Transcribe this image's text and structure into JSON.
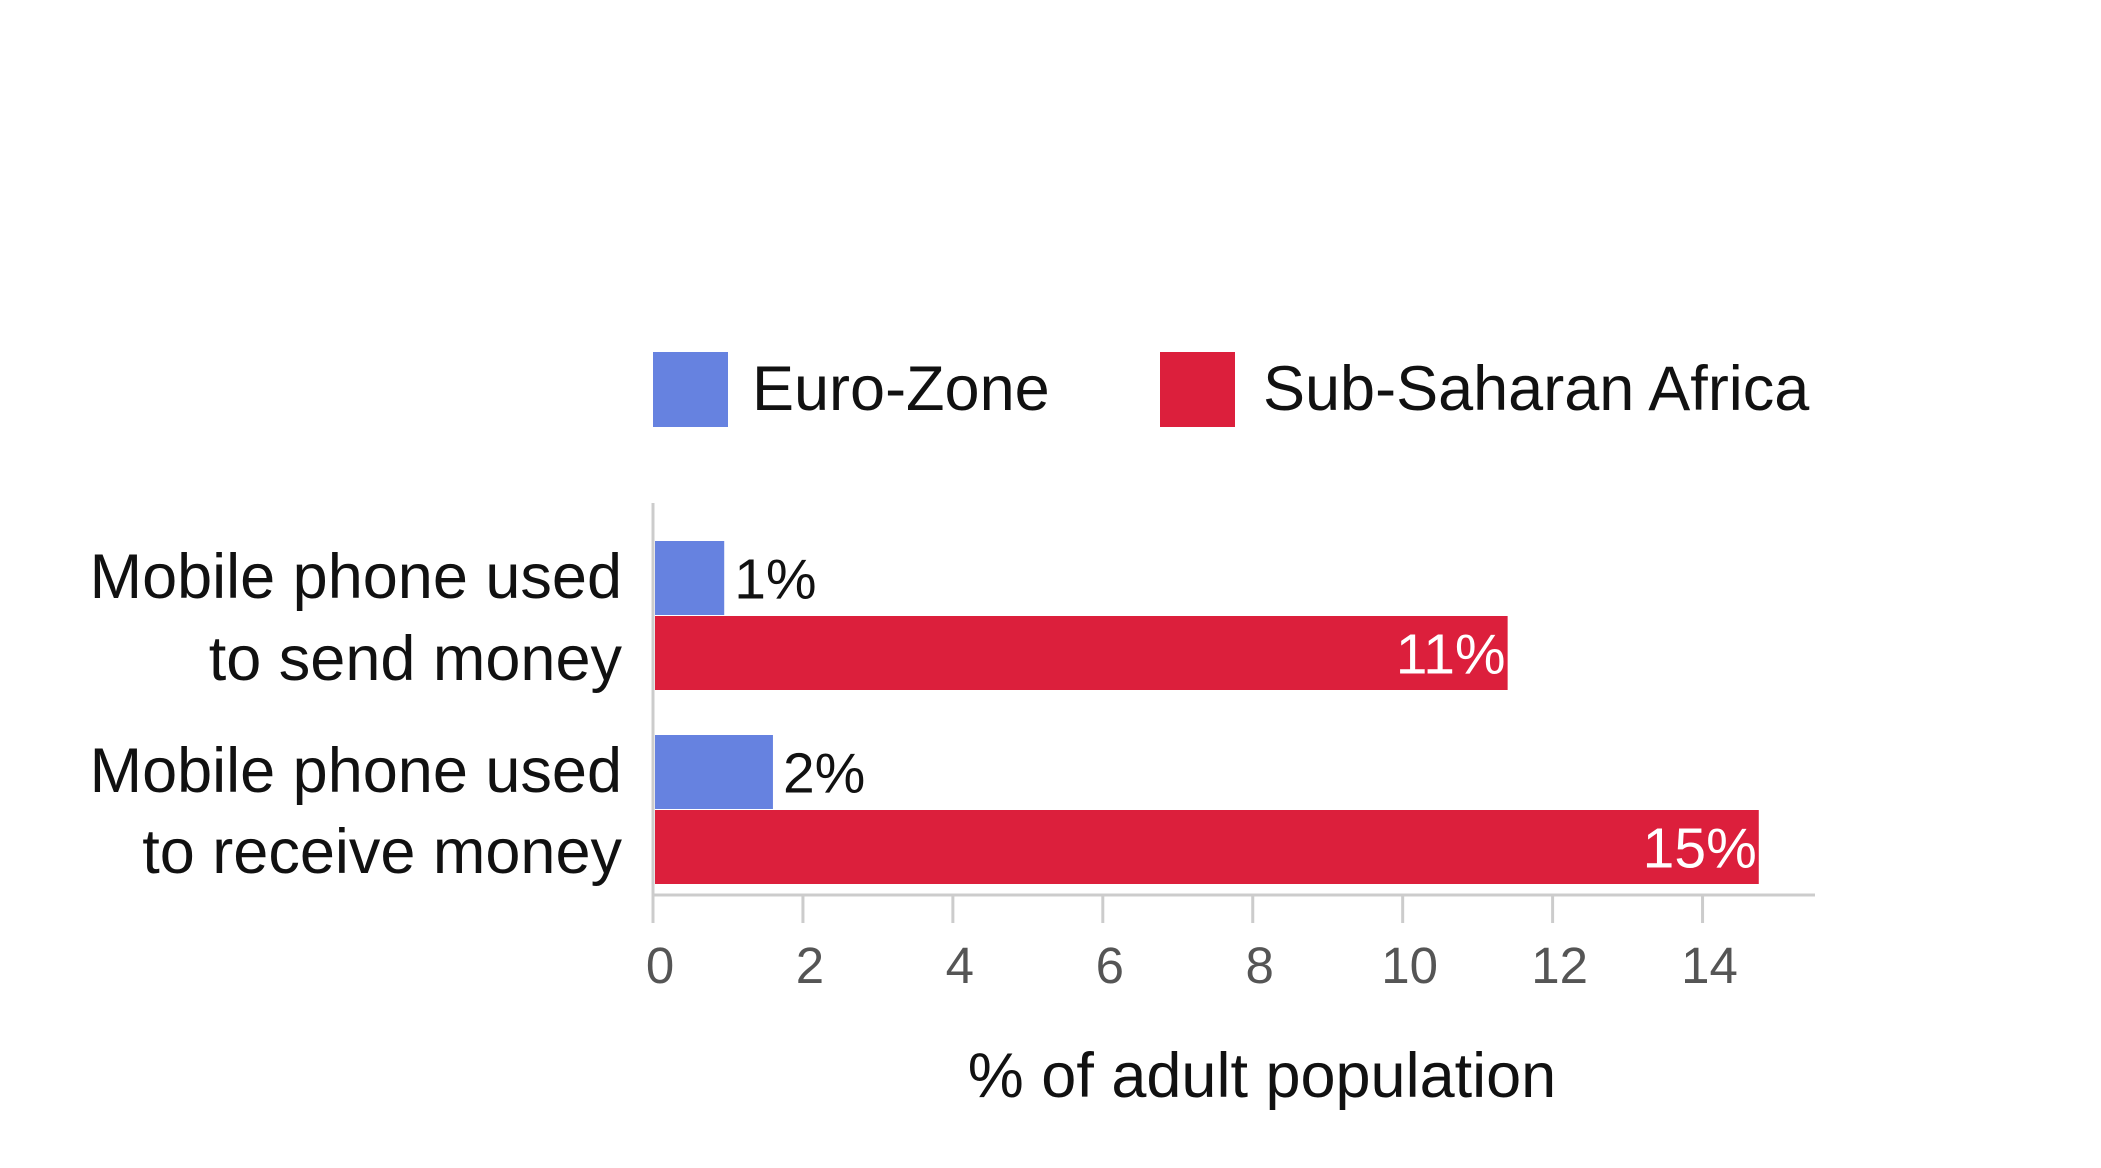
{
  "colors": {
    "euro_zone": "#6682E0",
    "sub_saharan_africa": "#DC1F3C",
    "axis": "#CCCCCC",
    "text": "#111111",
    "tick_text": "#555555"
  },
  "chart_data": {
    "type": "bar",
    "orientation": "horizontal",
    "categories": [
      [
        "Mobile phone used",
        "to send money"
      ],
      [
        "Mobile phone used",
        "to receive money"
      ]
    ],
    "series": [
      {
        "name": "Euro-Zone",
        "values": [
          0.95,
          1.6
        ],
        "labels": [
          "1%",
          "2%"
        ],
        "color": "#6682E0"
      },
      {
        "name": "Sub-Saharan Africa",
        "values": [
          11.4,
          14.75
        ],
        "labels": [
          "11%",
          "15%"
        ],
        "color": "#DC1F3C"
      }
    ],
    "xlabel": "% of adult population",
    "ylabel": "",
    "xlim": [
      0,
      15.5
    ],
    "x_ticks": [
      0,
      2,
      4,
      6,
      8,
      10,
      12,
      14
    ],
    "legend": "top",
    "grid": false
  }
}
